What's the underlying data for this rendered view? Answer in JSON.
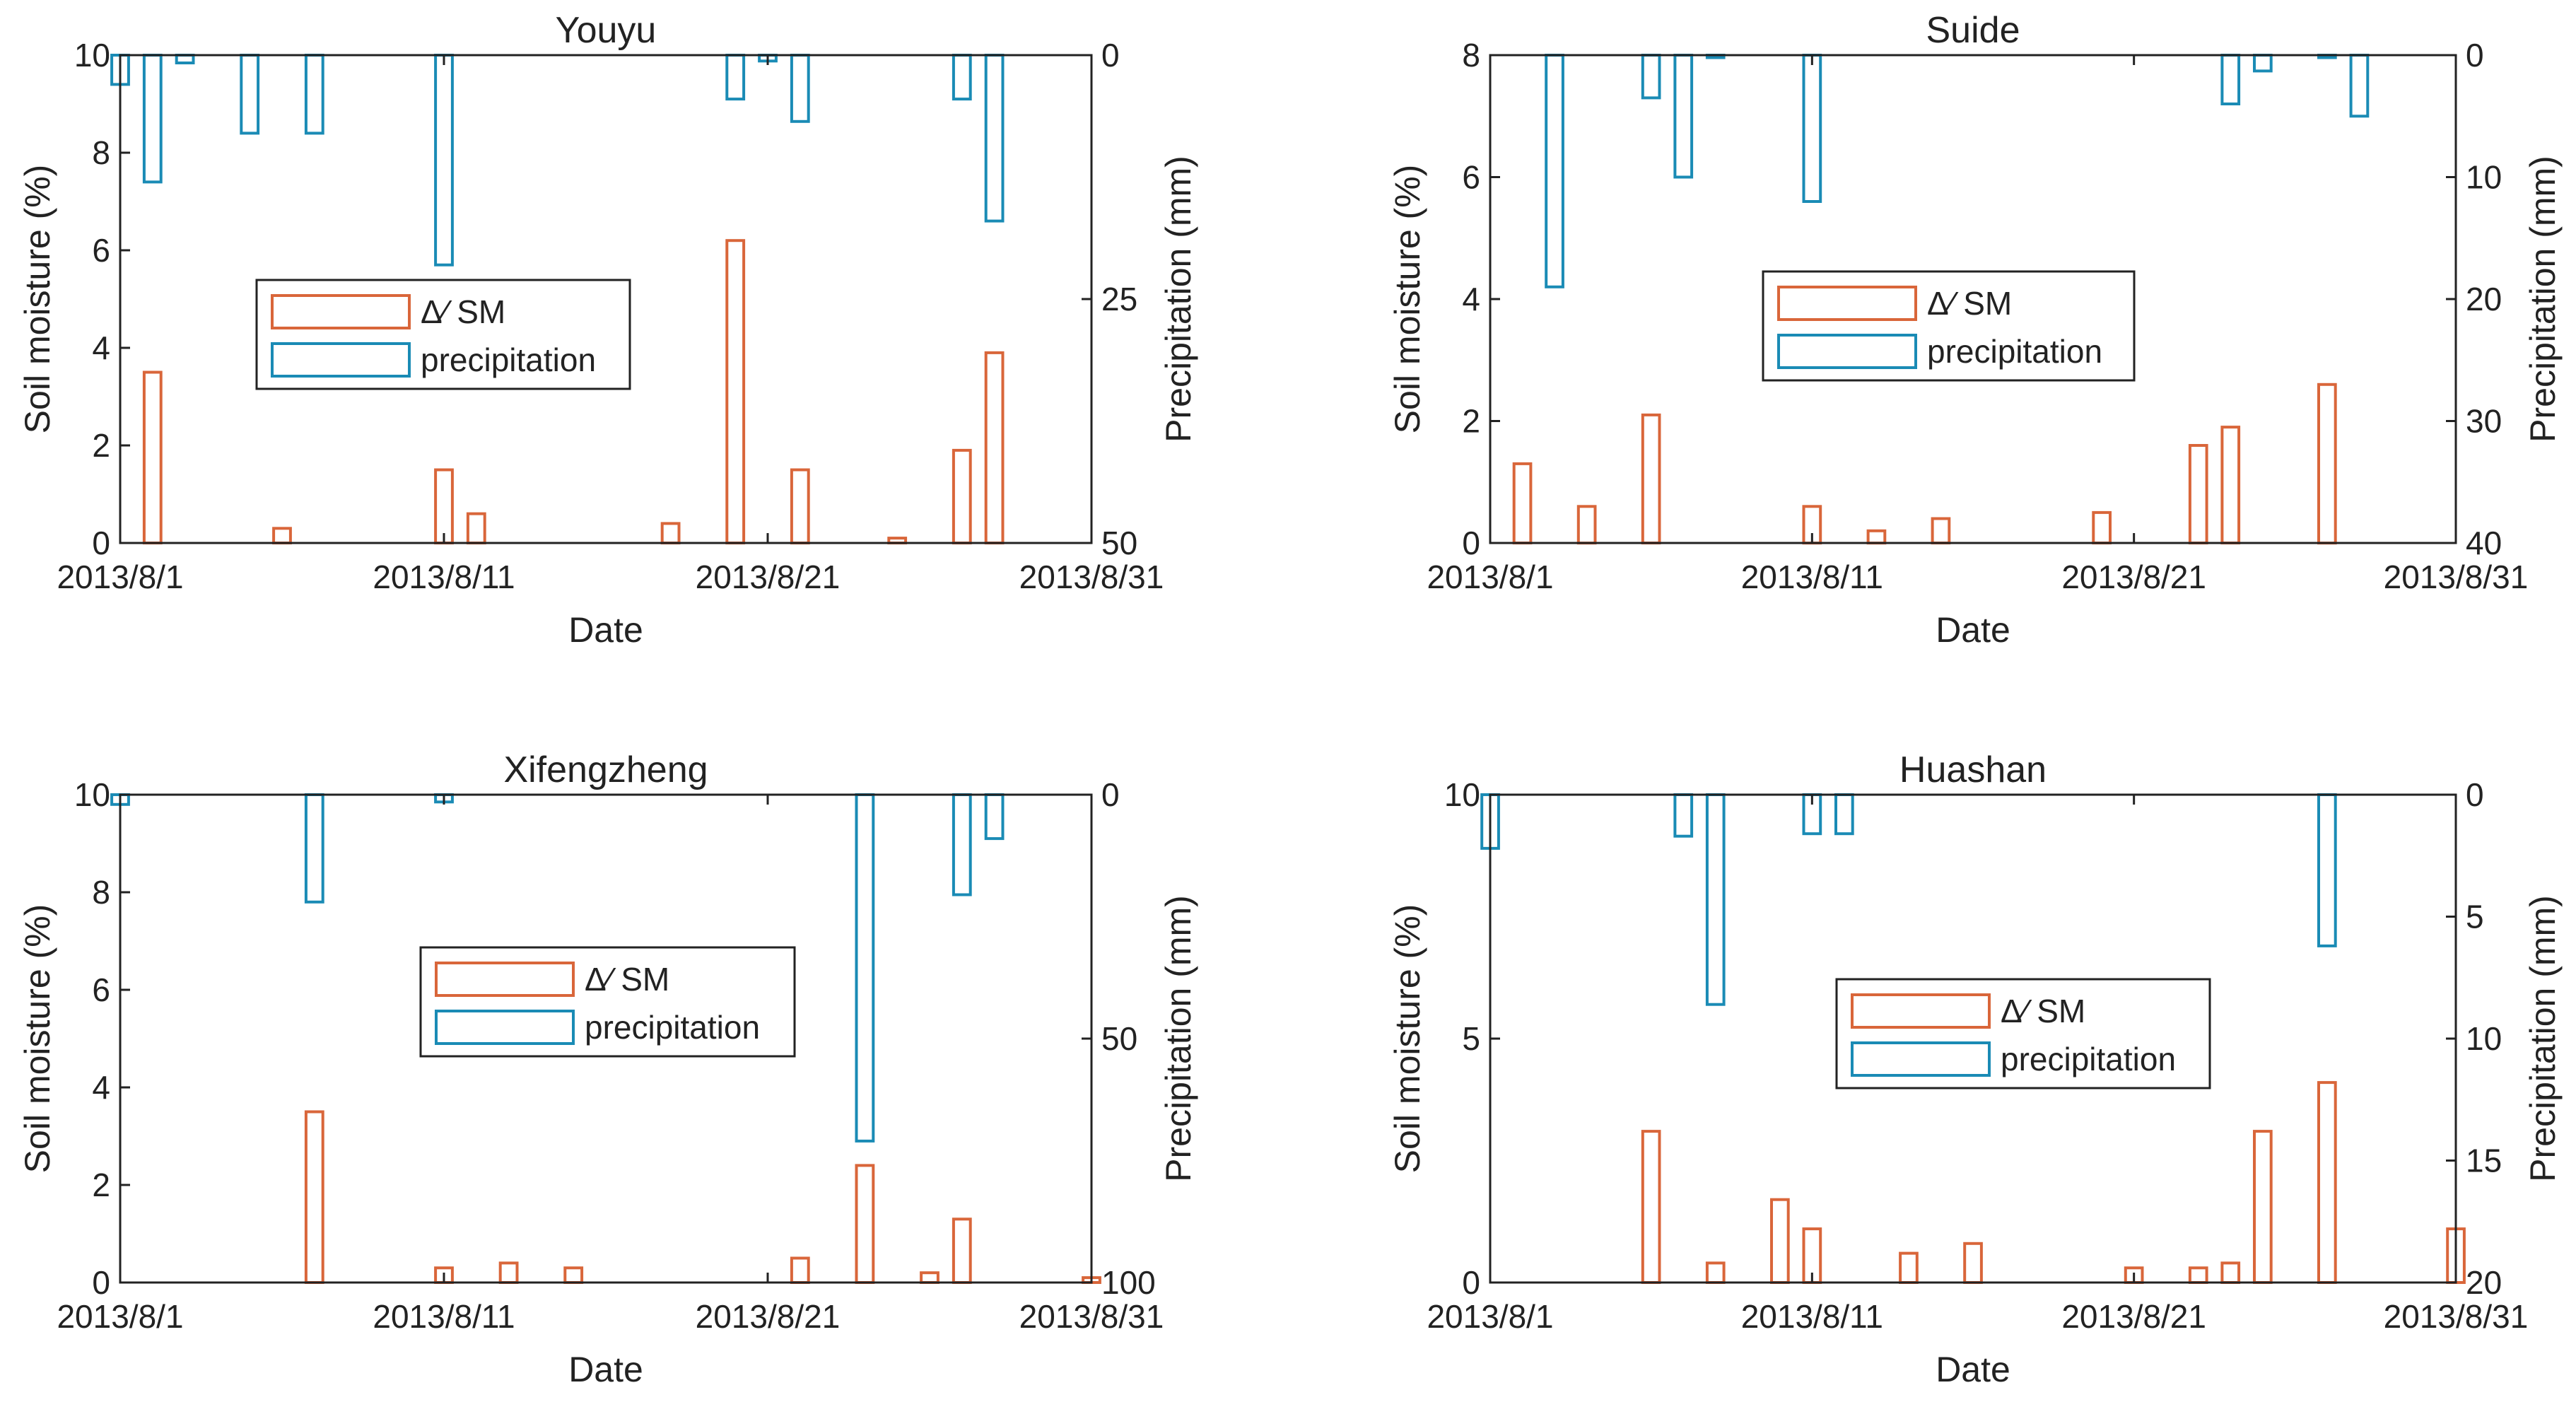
{
  "colors": {
    "sm": "#D9663A",
    "precip": "#1A8BB5",
    "axis": "#222222"
  },
  "chart_data": [
    {
      "type": "bar",
      "title": "Youyu",
      "xlabel": "Date",
      "ylabel": "Soil moisture (%)",
      "y2label": "Precipitation (mm)",
      "xlim": [
        1,
        31
      ],
      "xticks": [
        1,
        11,
        21,
        31
      ],
      "xticklabels": [
        "2013/8/1",
        "2013/8/11",
        "2013/8/21",
        "2013/8/31"
      ],
      "ylim": [
        0,
        10
      ],
      "yticks": [
        0,
        2,
        4,
        6,
        8,
        10
      ],
      "y2lim": [
        0,
        50
      ],
      "y2ticks": [
        0,
        25,
        50
      ],
      "y2_reversed": true,
      "legend": {
        "position": "center-left",
        "entries": [
          "Δ⁄ SM",
          "precipitation"
        ]
      },
      "series": [
        {
          "name": "Δ⁄ SM",
          "axis": "left",
          "days": [
            2,
            6,
            11,
            12,
            18,
            20,
            22,
            25,
            27,
            28
          ],
          "values": [
            3.5,
            0.3,
            1.5,
            0.6,
            0.4,
            6.2,
            1.5,
            0.1,
            1.9,
            3.9
          ]
        },
        {
          "name": "precipitation",
          "axis": "right",
          "days": [
            1,
            2,
            3,
            5,
            7,
            11,
            20,
            21,
            22,
            27,
            28
          ],
          "values": [
            3,
            13,
            0.8,
            8,
            8,
            21.5,
            4.5,
            0.6,
            6.8,
            4.5,
            17
          ]
        }
      ]
    },
    {
      "type": "bar",
      "title": "Suide",
      "xlabel": "Date",
      "ylabel": "Soil moisture (%)",
      "y2label": "Precipitation (mm)",
      "xlim": [
        1,
        31
      ],
      "xticks": [
        1,
        11,
        21,
        31
      ],
      "xticklabels": [
        "2013/8/1",
        "2013/8/11",
        "2013/8/21",
        "2013/8/31"
      ],
      "ylim": [
        0,
        8
      ],
      "yticks": [
        0,
        2,
        4,
        6,
        8
      ],
      "y2lim": [
        0,
        40
      ],
      "y2ticks": [
        0,
        10,
        20,
        30,
        40
      ],
      "y2_reversed": true,
      "legend": {
        "position": "center",
        "entries": [
          "Δ⁄ SM",
          "precipitation"
        ]
      },
      "series": [
        {
          "name": "Δ⁄ SM",
          "axis": "left",
          "days": [
            2,
            4,
            6,
            11,
            13,
            15,
            20,
            23,
            24,
            27
          ],
          "values": [
            1.3,
            0.6,
            2.1,
            0.6,
            0.2,
            0.4,
            0.5,
            1.6,
            1.9,
            2.6
          ]
        },
        {
          "name": "precipitation",
          "axis": "right",
          "days": [
            3,
            6,
            7,
            8,
            11,
            24,
            25,
            27,
            28
          ],
          "values": [
            19,
            3.5,
            10,
            0.2,
            12,
            4,
            1.3,
            0.2,
            5
          ]
        }
      ]
    },
    {
      "type": "bar",
      "title": "Xifengzheng",
      "xlabel": "Date",
      "ylabel": "Soil moisture (%)",
      "y2label": "Precipitation (mm)",
      "xlim": [
        1,
        31
      ],
      "xticks": [
        1,
        11,
        21,
        31
      ],
      "xticklabels": [
        "2013/8/1",
        "2013/8/11",
        "2013/8/21",
        "2013/8/31"
      ],
      "ylim": [
        0,
        10
      ],
      "yticks": [
        0,
        2,
        4,
        6,
        8,
        10
      ],
      "y2lim": [
        0,
        100
      ],
      "y2ticks": [
        0,
        50,
        100
      ],
      "y2_reversed": true,
      "legend": {
        "position": "center",
        "entries": [
          "Δ⁄ SM",
          "precipitation"
        ]
      },
      "series": [
        {
          "name": "Δ⁄ SM",
          "axis": "left",
          "days": [
            7,
            11,
            13,
            15,
            22,
            24,
            26,
            27,
            31
          ],
          "values": [
            3.5,
            0.3,
            0.4,
            0.3,
            0.5,
            2.4,
            0.2,
            1.3,
            0.1
          ]
        },
        {
          "name": "precipitation",
          "axis": "right",
          "days": [
            1,
            7,
            11,
            24,
            27,
            28
          ],
          "values": [
            2,
            22,
            1.5,
            71,
            20.5,
            9
          ]
        }
      ]
    },
    {
      "type": "bar",
      "title": "Huashan",
      "xlabel": "Date",
      "ylabel": "Soil moisture (%)",
      "y2label": "Precipitation (mm)",
      "xlim": [
        1,
        31
      ],
      "xticks": [
        1,
        11,
        21,
        31
      ],
      "xticklabels": [
        "2013/8/1",
        "2013/8/11",
        "2013/8/21",
        "2013/8/31"
      ],
      "ylim": [
        0,
        10
      ],
      "yticks": [
        0,
        5,
        10
      ],
      "y2lim": [
        0,
        20
      ],
      "y2ticks": [
        0,
        5,
        10,
        15,
        20
      ],
      "y2_reversed": true,
      "legend": {
        "position": "center",
        "entries": [
          "Δ⁄ SM",
          "precipitation"
        ]
      },
      "series": [
        {
          "name": "Δ⁄ SM",
          "axis": "left",
          "days": [
            6,
            8,
            10,
            11,
            14,
            16,
            21,
            23,
            24,
            25,
            27,
            31
          ],
          "values": [
            3.1,
            0.4,
            1.7,
            1.1,
            0.6,
            0.8,
            0.3,
            0.3,
            0.4,
            3.1,
            4.1,
            1.1
          ]
        },
        {
          "name": "precipitation",
          "axis": "right",
          "days": [
            1,
            7,
            8,
            11,
            12,
            27
          ],
          "values": [
            2.2,
            1.7,
            8.6,
            1.6,
            1.6,
            6.2
          ]
        }
      ]
    }
  ]
}
